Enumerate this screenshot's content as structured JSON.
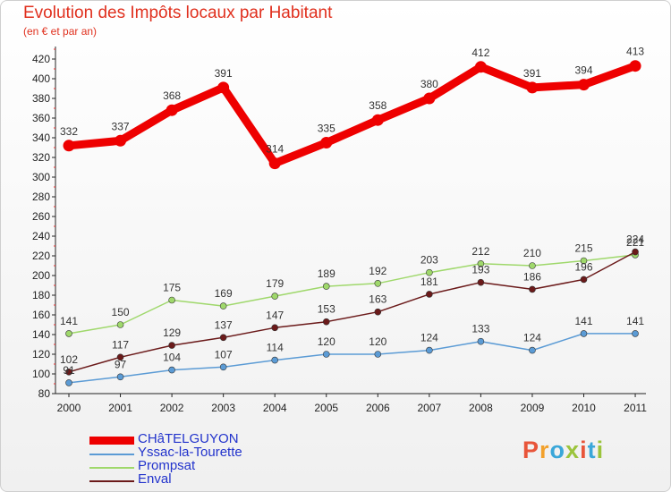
{
  "header": {
    "title": "Evolution des Impôts locaux par Habitant",
    "subtitle": "(en € et par an)"
  },
  "logo": {
    "text": "Proxiti",
    "colors": [
      "#e8553a",
      "#f2a12c",
      "#3aa7d9",
      "#9bc43c",
      "#e8553a",
      "#3aa7d9",
      "#9bc43c"
    ]
  },
  "colors": {
    "CHâTELGUYON": "#ee0000",
    "Yssac-la-Tourette": "#5b9bd5",
    "Prompsat": "#9fd86b",
    "Enval": "#6b1a1a"
  },
  "chart_data": {
    "type": "line",
    "title": "Evolution des Impôts locaux par Habitant",
    "subtitle": "(en € et par an)",
    "x": [
      "2000",
      "2001",
      "2002",
      "2003",
      "2004",
      "2005",
      "2006",
      "2007",
      "2008",
      "2009",
      "2010",
      "2011"
    ],
    "ylim": [
      80,
      420
    ],
    "yticks": [
      80,
      100,
      120,
      140,
      160,
      180,
      200,
      220,
      240,
      260,
      280,
      300,
      320,
      340,
      360,
      380,
      400,
      420
    ],
    "grid": false,
    "legend": "bottom-left",
    "series": [
      {
        "name": "CHâTELGUYON",
        "color": "#ee0000",
        "values": [
          332,
          337,
          368,
          391,
          314,
          335,
          358,
          380,
          412,
          391,
          394,
          413
        ]
      },
      {
        "name": "Yssac-la-Tourette",
        "color": "#5b9bd5",
        "values": [
          91,
          97,
          104,
          107,
          114,
          120,
          120,
          124,
          133,
          124,
          141,
          141
        ]
      },
      {
        "name": "Prompsat",
        "color": "#9fd86b",
        "values": [
          141,
          150,
          175,
          169,
          179,
          189,
          192,
          203,
          212,
          210,
          215,
          221
        ]
      },
      {
        "name": "Enval",
        "color": "#6b1a1a",
        "values": [
          102,
          117,
          129,
          137,
          147,
          153,
          163,
          181,
          193,
          186,
          196,
          224
        ]
      }
    ]
  }
}
